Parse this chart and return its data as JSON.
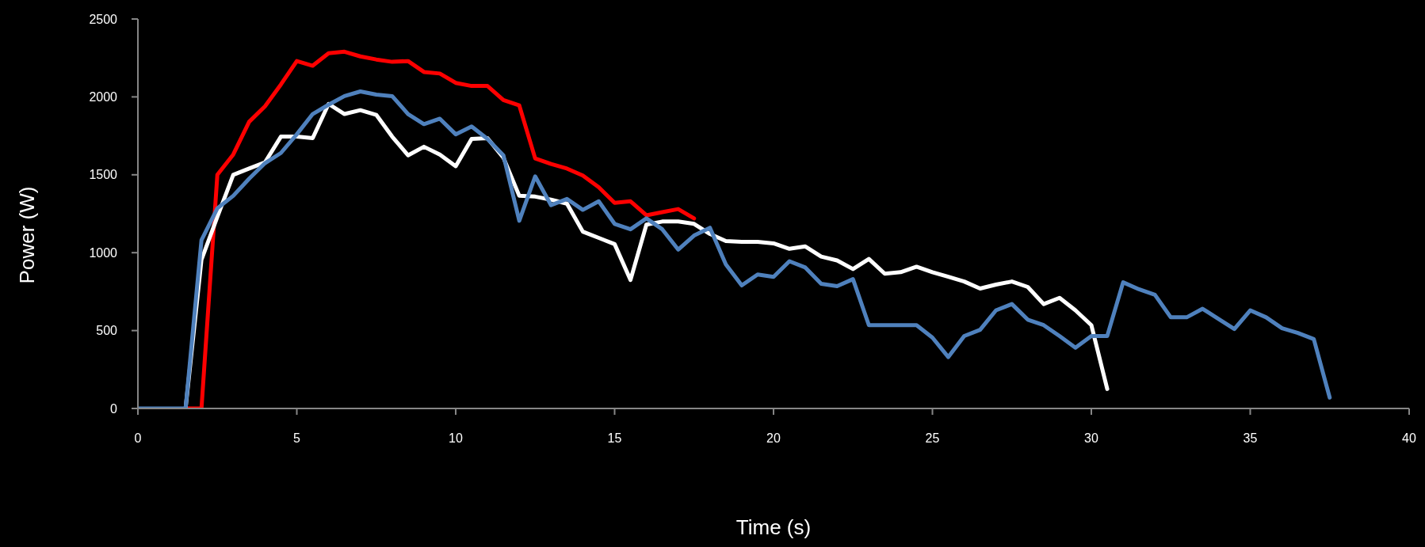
{
  "chart_data": {
    "type": "line",
    "xlabel": "Time (s)",
    "ylabel": "Power (W)",
    "xlim": [
      0,
      40
    ],
    "xticks": [
      0,
      5,
      10,
      15,
      20,
      25,
      30,
      35,
      40
    ],
    "ylim": [
      0,
      2500
    ],
    "yticks": [
      0,
      500,
      1000,
      1500,
      2000,
      2500
    ],
    "series": [
      {
        "color": "#ff0000",
        "x": [
          1.5,
          2,
          2.5,
          3,
          3.5,
          4,
          4.5,
          5,
          5.5,
          6,
          6.5,
          7,
          7.5,
          8,
          8.5,
          9,
          9.5,
          10,
          10.5,
          11,
          11.5,
          12,
          12.5,
          13,
          13.5,
          14,
          14.5,
          15,
          15.5,
          16,
          16.5,
          17,
          17.5
        ],
        "values": [
          0,
          0,
          1500,
          1630,
          1840,
          1940,
          2080,
          2230,
          2200,
          2280,
          2290,
          2260,
          2240,
          2225,
          2230,
          2160,
          2150,
          2090,
          2070,
          2070,
          1980,
          1945,
          1605,
          1570,
          1540,
          1495,
          1420,
          1320,
          1330,
          1240,
          1260,
          1280,
          1220
        ]
      },
      {
        "color": "#ffffff",
        "x": [
          1.5,
          2,
          2.5,
          3,
          3.5,
          4,
          4.5,
          5,
          5.5,
          6,
          6.5,
          7,
          7.5,
          8,
          8.5,
          9,
          9.5,
          10,
          10.5,
          11,
          11.5,
          12,
          12.5,
          13,
          13.5,
          14,
          14.5,
          15,
          15.5,
          16,
          16.5,
          17,
          17.5,
          18,
          18.5,
          19,
          19.5,
          20,
          20.5,
          21,
          21.5,
          22,
          22.5,
          23,
          23.5,
          24,
          24.5,
          25,
          25.5,
          26,
          26.5,
          27,
          27.5,
          28,
          28.5,
          29,
          29.5,
          30,
          30.5
        ],
        "values": [
          0,
          955,
          1230,
          1500,
          1540,
          1580,
          1745,
          1745,
          1735,
          1955,
          1890,
          1915,
          1885,
          1745,
          1625,
          1680,
          1630,
          1555,
          1730,
          1735,
          1610,
          1365,
          1360,
          1340,
          1315,
          1135,
          1095,
          1055,
          825,
          1180,
          1200,
          1200,
          1185,
          1120,
          1075,
          1070,
          1070,
          1060,
          1025,
          1040,
          975,
          950,
          895,
          960,
          865,
          875,
          910,
          875,
          845,
          815,
          770,
          795,
          815,
          780,
          670,
          710,
          630,
          535,
          125
        ]
      },
      {
        "color": "#4f81bd",
        "x": [
          0,
          0.5,
          1,
          1.5,
          2,
          2.5,
          3,
          3.5,
          4,
          4.5,
          5,
          5.5,
          6,
          6.5,
          7,
          7.5,
          8,
          8.5,
          9,
          9.5,
          10,
          10.5,
          11,
          11.5,
          12,
          12.5,
          13,
          13.5,
          14,
          14.5,
          15,
          15.5,
          16,
          16.5,
          17,
          17.5,
          18,
          18.5,
          19,
          19.5,
          20,
          20.5,
          21,
          21.5,
          22,
          22.5,
          23,
          23.5,
          24,
          24.5,
          25,
          25.5,
          26,
          26.5,
          27,
          27.5,
          28,
          28.5,
          29,
          29.5,
          30,
          30.5,
          31,
          31.5,
          32,
          32.5,
          33,
          33.5,
          34,
          34.5,
          35,
          35.5,
          36,
          36.5,
          37,
          37.5
        ],
        "values": [
          0,
          0,
          0,
          0,
          1080,
          1285,
          1365,
          1475,
          1575,
          1640,
          1760,
          1890,
          1950,
          2005,
          2035,
          2015,
          2005,
          1890,
          1825,
          1860,
          1760,
          1810,
          1730,
          1625,
          1205,
          1490,
          1305,
          1345,
          1275,
          1330,
          1185,
          1150,
          1220,
          1150,
          1020,
          1110,
          1160,
          925,
          790,
          860,
          845,
          945,
          905,
          800,
          785,
          830,
          535,
          535,
          535,
          535,
          455,
          330,
          465,
          505,
          630,
          670,
          570,
          535,
          465,
          390,
          465,
          465,
          810,
          765,
          730,
          585,
          585,
          640,
          575,
          510,
          630,
          585,
          515,
          485,
          445,
          70
        ]
      }
    ]
  }
}
